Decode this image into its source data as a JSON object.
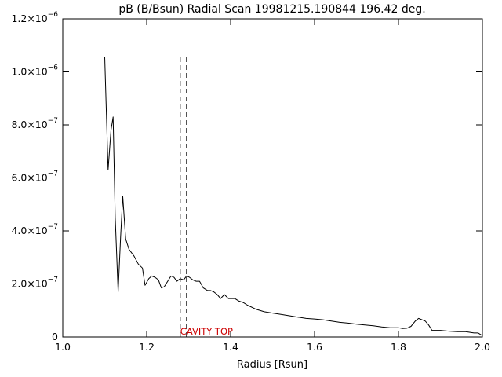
{
  "chart_data": {
    "type": "line",
    "title": "pB (B/Bsun) Radial Scan 19981215.190844 196.42 deg.",
    "xlabel": "Radius [Rsun]",
    "ylabel": "",
    "xlim": [
      1.0,
      2.0
    ],
    "ylim": [
      0,
      1.2e-06
    ],
    "x_ticks": [
      {
        "value": 1.0,
        "label": "1.0"
      },
      {
        "value": 1.2,
        "label": "1.2"
      },
      {
        "value": 1.4,
        "label": "1.4"
      },
      {
        "value": 1.6,
        "label": "1.6"
      },
      {
        "value": 1.8,
        "label": "1.8"
      },
      {
        "value": 2.0,
        "label": "2.0"
      }
    ],
    "y_ticks": [
      {
        "value": 0,
        "mant": "0",
        "exp": ""
      },
      {
        "value": 2e-07,
        "mant": "2.0×10",
        "exp": "−7"
      },
      {
        "value": 4e-07,
        "mant": "4.0×10",
        "exp": "−7"
      },
      {
        "value": 6e-07,
        "mant": "6.0×10",
        "exp": "−7"
      },
      {
        "value": 8e-07,
        "mant": "8.0×10",
        "exp": "−7"
      },
      {
        "value": 1e-06,
        "mant": "1.0×10",
        "exp": "−6"
      },
      {
        "value": 1.2e-06,
        "mant": "1.2×10",
        "exp": "−6"
      }
    ],
    "grid": false,
    "line_color": "#000000",
    "series": [
      {
        "x": [
          1.1,
          1.108,
          1.115,
          1.12,
          1.125,
          1.132,
          1.138,
          1.143,
          1.15,
          1.158,
          1.17,
          1.18,
          1.19,
          1.196,
          1.205,
          1.212,
          1.22,
          1.228,
          1.235,
          1.242,
          1.25,
          1.258,
          1.265,
          1.272,
          1.28,
          1.288,
          1.295,
          1.302,
          1.31,
          1.318,
          1.326,
          1.335,
          1.345,
          1.352,
          1.36,
          1.368,
          1.376,
          1.385,
          1.395,
          1.41,
          1.42,
          1.43,
          1.44,
          1.46,
          1.48,
          1.5,
          1.52,
          1.54,
          1.56,
          1.58,
          1.6,
          1.62,
          1.64,
          1.66,
          1.68,
          1.7,
          1.72,
          1.74,
          1.76,
          1.78,
          1.8,
          1.81,
          1.82,
          1.83,
          1.84,
          1.848,
          1.856,
          1.864,
          1.872,
          1.88,
          1.9,
          1.92,
          1.94,
          1.96,
          1.98,
          1.99,
          2.0
        ],
        "y": [
          1.055e-06,
          6.3e-07,
          7.8e-07,
          8.3e-07,
          4.5e-07,
          1.7e-07,
          3.8e-07,
          5.3e-07,
          3.7e-07,
          3.3e-07,
          3.05e-07,
          2.75e-07,
          2.6e-07,
          1.95e-07,
          2.2e-07,
          2.3e-07,
          2.25e-07,
          2.15e-07,
          1.85e-07,
          1.9e-07,
          2.1e-07,
          2.3e-07,
          2.25e-07,
          2.1e-07,
          2.2e-07,
          2.15e-07,
          2.3e-07,
          2.25e-07,
          2.15e-07,
          2.1e-07,
          2.1e-07,
          1.85e-07,
          1.75e-07,
          1.75e-07,
          1.7e-07,
          1.6e-07,
          1.45e-07,
          1.6e-07,
          1.45e-07,
          1.45e-07,
          1.35e-07,
          1.3e-07,
          1.2e-07,
          1.05e-07,
          9.5e-08,
          9e-08,
          8.5e-08,
          8e-08,
          7.5e-08,
          7e-08,
          6.8e-08,
          6.5e-08,
          6e-08,
          5.5e-08,
          5.2e-08,
          4.8e-08,
          4.5e-08,
          4.2e-08,
          3.8e-08,
          3.5e-08,
          3.5e-08,
          3.2e-08,
          3.3e-08,
          4e-08,
          6e-08,
          7e-08,
          6.5e-08,
          6e-08,
          4.5e-08,
          2.5e-08,
          2.5e-08,
          2.2e-08,
          2e-08,
          2e-08,
          1.5e-08,
          1.5e-08,
          5e-09
        ]
      }
    ],
    "vertical_lines": [
      {
        "x": 1.28,
        "ymin": 0,
        "ymax": 1.06e-06,
        "style": "dashed"
      },
      {
        "x": 1.295,
        "ymin": 0,
        "ymax": 1.06e-06,
        "style": "dashed"
      }
    ],
    "annotations": [
      {
        "text": "CAVITY TOP",
        "x": 1.28,
        "y": 0,
        "color": "#cc0000"
      }
    ]
  }
}
